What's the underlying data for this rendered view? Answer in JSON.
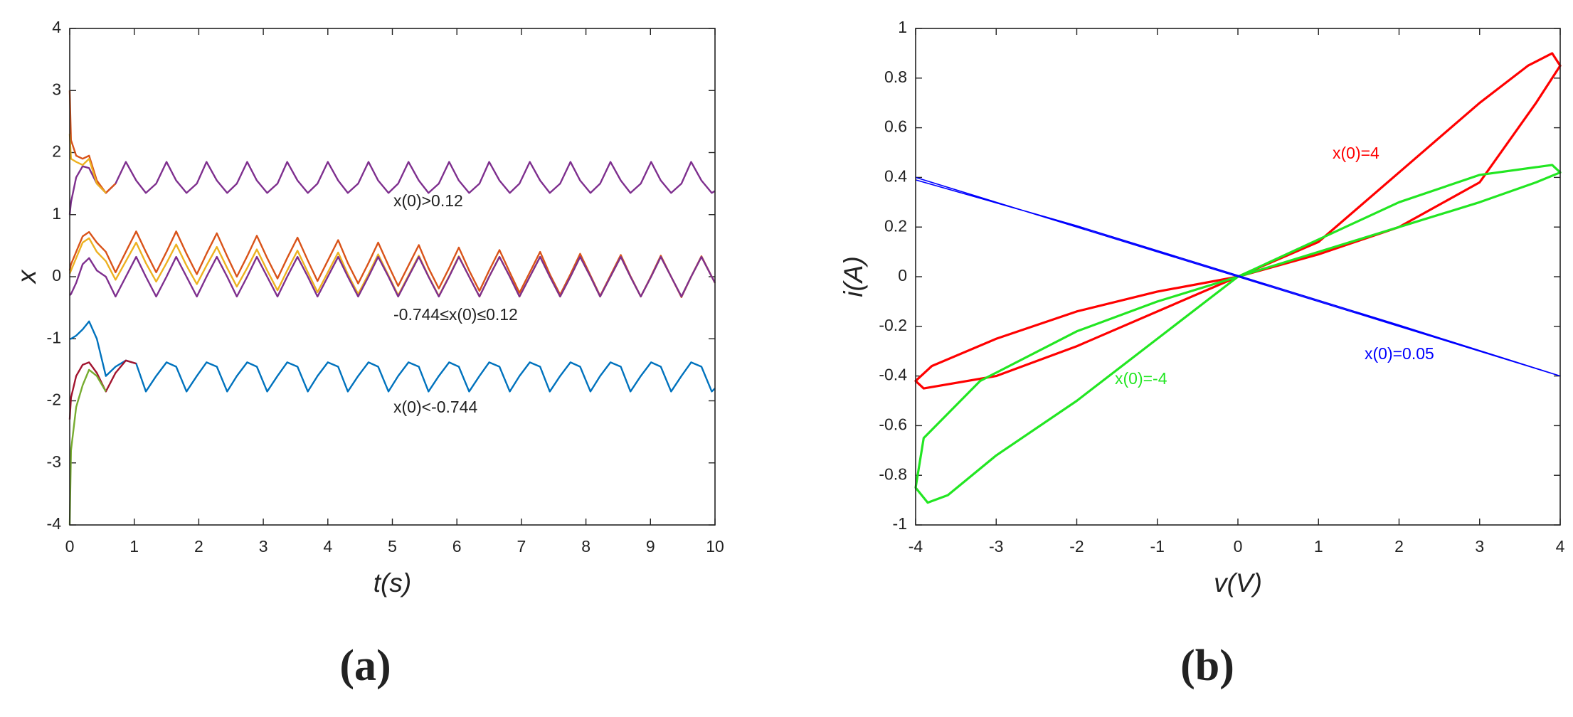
{
  "chart_data": [
    {
      "type": "line",
      "panel_label": "(a)",
      "x_label": "t(s)",
      "y_label": "x",
      "xlim": [
        0,
        10
      ],
      "ylim": [
        -4,
        4
      ],
      "xticks": [
        0,
        1,
        2,
        3,
        4,
        5,
        6,
        7,
        8,
        9,
        10
      ],
      "yticks": [
        -4,
        -3,
        -2,
        -1,
        0,
        1,
        2,
        3,
        4
      ],
      "annotations": [
        "x(0)>0.12",
        "-0.744≤x(0)≤0.12",
        "x(0)<-0.744"
      ],
      "x": [
        0,
        0.02,
        0.1,
        0.2,
        0.3,
        0.42,
        0.56,
        0.71,
        0.87,
        1.03,
        1.18,
        1.34,
        1.5,
        1.65,
        1.81,
        1.97,
        2.12,
        2.28,
        2.44,
        2.59,
        2.75,
        2.9,
        3.06,
        3.22,
        3.37,
        3.53,
        3.69,
        3.84,
        4,
        4.16,
        4.31,
        4.47,
        4.63,
        4.78,
        4.94,
        5.09,
        5.25,
        5.41,
        5.56,
        5.72,
        5.88,
        6.03,
        6.19,
        6.35,
        6.5,
        6.66,
        6.82,
        6.97,
        7.13,
        7.29,
        7.44,
        7.6,
        7.76,
        7.91,
        8.07,
        8.22,
        8.38,
        8.54,
        8.69,
        8.85,
        9.01,
        9.16,
        9.32,
        9.48,
        9.63,
        9.79,
        9.95,
        10
      ],
      "series": [
        {
          "color": "#7E2F8E",
          "values": [
            1,
            1.2,
            1.6,
            1.78,
            1.75,
            1.5,
            1.35,
            1.5,
            1.85,
            1.55,
            1.35,
            1.5,
            1.85,
            1.55,
            1.35,
            1.5,
            1.85,
            1.55,
            1.35,
            1.5,
            1.85,
            1.55,
            1.35,
            1.5,
            1.85,
            1.55,
            1.35,
            1.5,
            1.85,
            1.55,
            1.35,
            1.5,
            1.85,
            1.55,
            1.35,
            1.5,
            1.85,
            1.55,
            1.35,
            1.5,
            1.85,
            1.55,
            1.35,
            1.5,
            1.85,
            1.55,
            1.35,
            1.5,
            1.85,
            1.55,
            1.35,
            1.5,
            1.85,
            1.55,
            1.35,
            1.5,
            1.85,
            1.55,
            1.35,
            1.5,
            1.85,
            1.55,
            1.35,
            1.5,
            1.85,
            1.55,
            1.35,
            1.38
          ]
        },
        {
          "color": "#D95319",
          "values": [
            0.1,
            0.2,
            0.4,
            0.65,
            0.72,
            0.55,
            0.4,
            0.07,
            0.4,
            0.73,
            0.4,
            0.07,
            0.4,
            0.73,
            0.37,
            0.04,
            0.37,
            0.7,
            0.33,
            0,
            0.33,
            0.66,
            0.3,
            -0.03,
            0.3,
            0.63,
            0.26,
            -0.07,
            0.26,
            0.59,
            0.22,
            -0.11,
            0.22,
            0.55,
            0.18,
            -0.15,
            0.18,
            0.51,
            0.14,
            -0.19,
            0.14,
            0.47,
            0.1,
            -0.23,
            0.1,
            0.43,
            0.07,
            -0.26,
            0.07,
            0.4,
            0.04,
            -0.29,
            0.04,
            0.37,
            0.02,
            -0.31,
            0.02,
            0.35,
            0.01,
            -0.32,
            0.01,
            0.34,
            0,
            -0.33,
            0,
            0.33,
            0,
            -0.1
          ]
        },
        {
          "color": "#EDB120",
          "values": [
            0.05,
            0.1,
            0.3,
            0.55,
            0.62,
            0.4,
            0.25,
            -0.05,
            0.25,
            0.55,
            0.22,
            -0.08,
            0.22,
            0.52,
            0.18,
            -0.12,
            0.18,
            0.48,
            0.14,
            -0.16,
            0.14,
            0.44,
            0.1,
            -0.22,
            0.1,
            0.42,
            0.07,
            -0.25,
            0.07,
            0.39,
            0.04,
            -0.28,
            0.04,
            0.36,
            0.02,
            -0.3,
            0.02,
            0.34,
            0.01,
            -0.31,
            0.01,
            0.33,
            0,
            -0.32,
            0,
            0.32,
            0,
            -0.32,
            0,
            0.32,
            0,
            -0.32,
            0,
            0.32,
            0,
            -0.32,
            0,
            0.32,
            0,
            -0.32,
            0,
            0.32,
            0,
            -0.32,
            0,
            0.32,
            0,
            -0.1
          ]
        },
        {
          "color": "#7E2F8E",
          "values": [
            -0.3,
            -0.28,
            -0.1,
            0.2,
            0.3,
            0.1,
            0,
            -0.32,
            0,
            0.32,
            0,
            -0.32,
            0,
            0.32,
            0,
            -0.32,
            0,
            0.32,
            0,
            -0.32,
            0,
            0.32,
            0,
            -0.32,
            0,
            0.32,
            0,
            -0.32,
            0,
            0.32,
            0,
            -0.32,
            0,
            0.32,
            0,
            -0.32,
            0,
            0.32,
            0,
            -0.32,
            0,
            0.32,
            0,
            -0.32,
            0,
            0.32,
            0,
            -0.32,
            0,
            0.32,
            0,
            -0.32,
            0,
            0.32,
            0,
            -0.32,
            0,
            0.32,
            0,
            -0.32,
            0,
            0.32,
            0,
            -0.32,
            0,
            0.32,
            0,
            -0.1
          ]
        },
        {
          "color": "#D95319",
          "x": [
            0,
            0.02,
            0.1,
            0.2,
            0.3,
            0.42,
            0.56,
            0.71
          ],
          "values": [
            3,
            2.2,
            1.95,
            1.9,
            1.95,
            1.55,
            1.35,
            1.5
          ]
        },
        {
          "color": "#EDB120",
          "x": [
            0,
            0.02,
            0.1,
            0.2,
            0.3,
            0.42,
            0.56
          ],
          "values": [
            2.3,
            1.9,
            1.85,
            1.8,
            1.9,
            1.5,
            1.35
          ]
        },
        {
          "color": "#0072BD",
          "values": [
            -1,
            -1,
            -0.95,
            -0.85,
            -0.72,
            -1,
            -1.6,
            -1.45,
            -1.35,
            -1.4,
            -1.85,
            -1.6,
            -1.38,
            -1.45,
            -1.85,
            -1.6,
            -1.38,
            -1.45,
            -1.85,
            -1.6,
            -1.38,
            -1.45,
            -1.85,
            -1.6,
            -1.38,
            -1.45,
            -1.85,
            -1.6,
            -1.38,
            -1.45,
            -1.85,
            -1.6,
            -1.38,
            -1.45,
            -1.85,
            -1.6,
            -1.38,
            -1.45,
            -1.85,
            -1.6,
            -1.38,
            -1.45,
            -1.85,
            -1.6,
            -1.38,
            -1.45,
            -1.85,
            -1.6,
            -1.38,
            -1.45,
            -1.85,
            -1.6,
            -1.38,
            -1.45,
            -1.85,
            -1.6,
            -1.38,
            -1.45,
            -1.85,
            -1.6,
            -1.38,
            -1.45,
            -1.85,
            -1.6,
            -1.38,
            -1.45,
            -1.85,
            -1.8
          ]
        },
        {
          "color": "#A2142F",
          "x": [
            0,
            0.02,
            0.1,
            0.2,
            0.3,
            0.42,
            0.56,
            0.71,
            0.87,
            1.03
          ],
          "values": [
            -2.3,
            -1.95,
            -1.6,
            -1.42,
            -1.38,
            -1.55,
            -1.85,
            -1.55,
            -1.35,
            -1.4
          ]
        },
        {
          "color": "#77AC30",
          "x": [
            0,
            0.02,
            0.1,
            0.2,
            0.3,
            0.42,
            0.56
          ],
          "values": [
            -4,
            -2.8,
            -2.1,
            -1.75,
            -1.5,
            -1.6,
            -1.85
          ]
        }
      ]
    },
    {
      "type": "line",
      "panel_label": "(b)",
      "x_label": "v(V)",
      "y_label": "i(A)",
      "xlim": [
        -4,
        4
      ],
      "ylim": [
        -1,
        1
      ],
      "xticks": [
        -4,
        -3,
        -2,
        -1,
        0,
        1,
        2,
        3,
        4
      ],
      "yticks": [
        -1,
        -0.8,
        -0.6,
        -0.4,
        -0.2,
        0,
        0.2,
        0.4,
        0.6,
        0.8,
        1
      ],
      "series": [
        {
          "name": "x(0)=4",
          "color": "#ff0000",
          "x": [
            0,
            1,
            2,
            3,
            3.6,
            3.9,
            4,
            3.7,
            3,
            2,
            1,
            0,
            -1,
            -2,
            -3,
            -3.8,
            -4,
            -3.9,
            -3,
            -2,
            -1,
            0
          ],
          "values": [
            0,
            0.14,
            0.42,
            0.7,
            0.85,
            0.9,
            0.85,
            0.7,
            0.38,
            0.2,
            0.09,
            0,
            -0.06,
            -0.14,
            -0.25,
            -0.36,
            -0.42,
            -0.45,
            -0.4,
            -0.28,
            -0.14,
            0
          ]
        },
        {
          "name": "x(0)=-4",
          "color": "#22e622",
          "x": [
            0,
            1,
            2,
            3,
            3.7,
            4,
            3.9,
            3,
            2,
            1,
            0,
            -1,
            -2,
            -3,
            -3.6,
            -3.85,
            -4,
            -3.9,
            -3.2,
            -2,
            -1,
            0
          ],
          "values": [
            0,
            0.1,
            0.2,
            0.3,
            0.38,
            0.42,
            0.45,
            0.41,
            0.3,
            0.15,
            0,
            -0.25,
            -0.5,
            -0.72,
            -0.88,
            -0.91,
            -0.85,
            -0.65,
            -0.42,
            -0.22,
            -0.1,
            0
          ]
        },
        {
          "name": "x(0)=0.05",
          "color": "#0000ff",
          "x": [
            -4,
            -2,
            0,
            2,
            4,
            2,
            0,
            -2,
            -4
          ],
          "values": [
            0.39,
            0.205,
            0.005,
            -0.195,
            -0.4,
            -0.2,
            0,
            0.2,
            0.4
          ]
        }
      ]
    }
  ]
}
